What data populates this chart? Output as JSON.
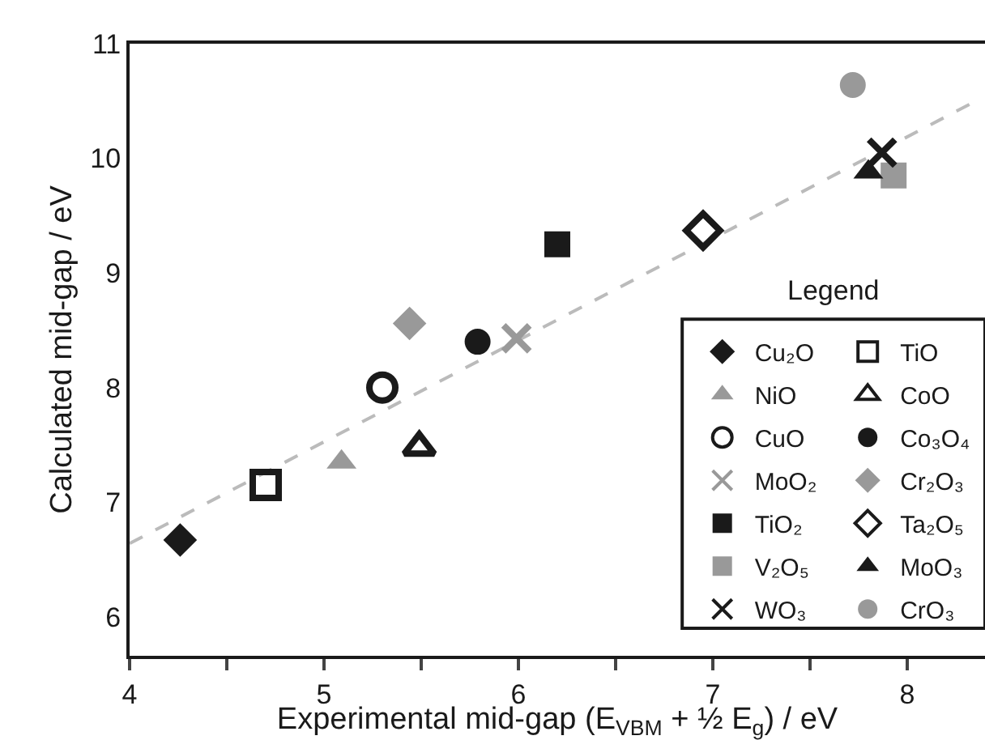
{
  "chart_data": {
    "type": "scatter",
    "xlabel": "Experimental mid-gap (E$_{VBM}$ + ½ E$_{g}$) / eV",
    "ylabel": "Calculated mid-gap / eV",
    "legend_title": "Legend",
    "xlim": [
      4,
      8.4
    ],
    "ylim": [
      5.66,
      11
    ],
    "xticks": [
      4,
      {
        "value": 4.5,
        "label": null
      },
      5,
      {
        "value": 5.5,
        "label": null
      },
      6,
      {
        "value": 6.5,
        "label": null
      },
      7,
      {
        "value": 7.5,
        "label": null
      },
      8
    ],
    "yticks": [
      6,
      7,
      8,
      9,
      10,
      11
    ],
    "grid": false,
    "legend": "bottom right",
    "series": [
      {
        "name": "Cu₂O",
        "color": "#1a1a1a",
        "marker": "diamond",
        "x": [
          4.26
        ],
        "values": [
          6.67
        ]
      },
      {
        "name": "TiO",
        "color": "#1a1a1a",
        "marker": "square-open",
        "x": [
          4.7
        ],
        "values": [
          7.15
        ]
      },
      {
        "name": "NiO",
        "color": "#999999",
        "marker": "triangle",
        "x": [
          5.09
        ],
        "values": [
          7.35
        ]
      },
      {
        "name": "CoO",
        "color": "#1a1a1a",
        "marker": "triangle-open",
        "x": [
          5.49
        ],
        "values": [
          7.48
        ]
      },
      {
        "name": "CuO",
        "color": "#1a1a1a",
        "marker": "circle-open",
        "x": [
          5.3
        ],
        "values": [
          8.0
        ]
      },
      {
        "name": "Co₃O₄",
        "color": "#1a1a1a",
        "marker": "circle",
        "x": [
          5.79
        ],
        "values": [
          8.4
        ]
      },
      {
        "name": "MoO₂",
        "color": "#999999",
        "marker": "cross",
        "x": [
          5.99
        ],
        "values": [
          8.43
        ]
      },
      {
        "name": "Cr₂O₃",
        "color": "#999999",
        "marker": "diamond",
        "x": [
          5.44
        ],
        "values": [
          8.56
        ]
      },
      {
        "name": "TiO₂",
        "color": "#1a1a1a",
        "marker": "square",
        "x": [
          6.2
        ],
        "values": [
          9.25
        ]
      },
      {
        "name": "Ta₂O₅",
        "color": "#1a1a1a",
        "marker": "diamond-open",
        "x": [
          6.95
        ],
        "values": [
          9.37
        ]
      },
      {
        "name": "V₂O₅",
        "color": "#999999",
        "marker": "square",
        "x": [
          7.93
        ],
        "values": [
          9.85
        ]
      },
      {
        "name": "MoO₃",
        "color": "#1a1a1a",
        "marker": "triangle",
        "x": [
          7.8
        ],
        "values": [
          9.88
        ]
      },
      {
        "name": "WO₃",
        "color": "#1a1a1a",
        "marker": "cross",
        "x": [
          7.87
        ],
        "values": [
          10.05
        ]
      },
      {
        "name": "CrO₃",
        "color": "#999999",
        "marker": "circle",
        "x": [
          7.72
        ],
        "values": [
          10.64
        ]
      },
      {
        "type": "line",
        "color": "#bbbbbb",
        "line_style": "dashed",
        "marker": "none",
        "x": [
          4.0,
          8.33
        ],
        "values": [
          6.64,
          10.48
        ]
      }
    ]
  }
}
